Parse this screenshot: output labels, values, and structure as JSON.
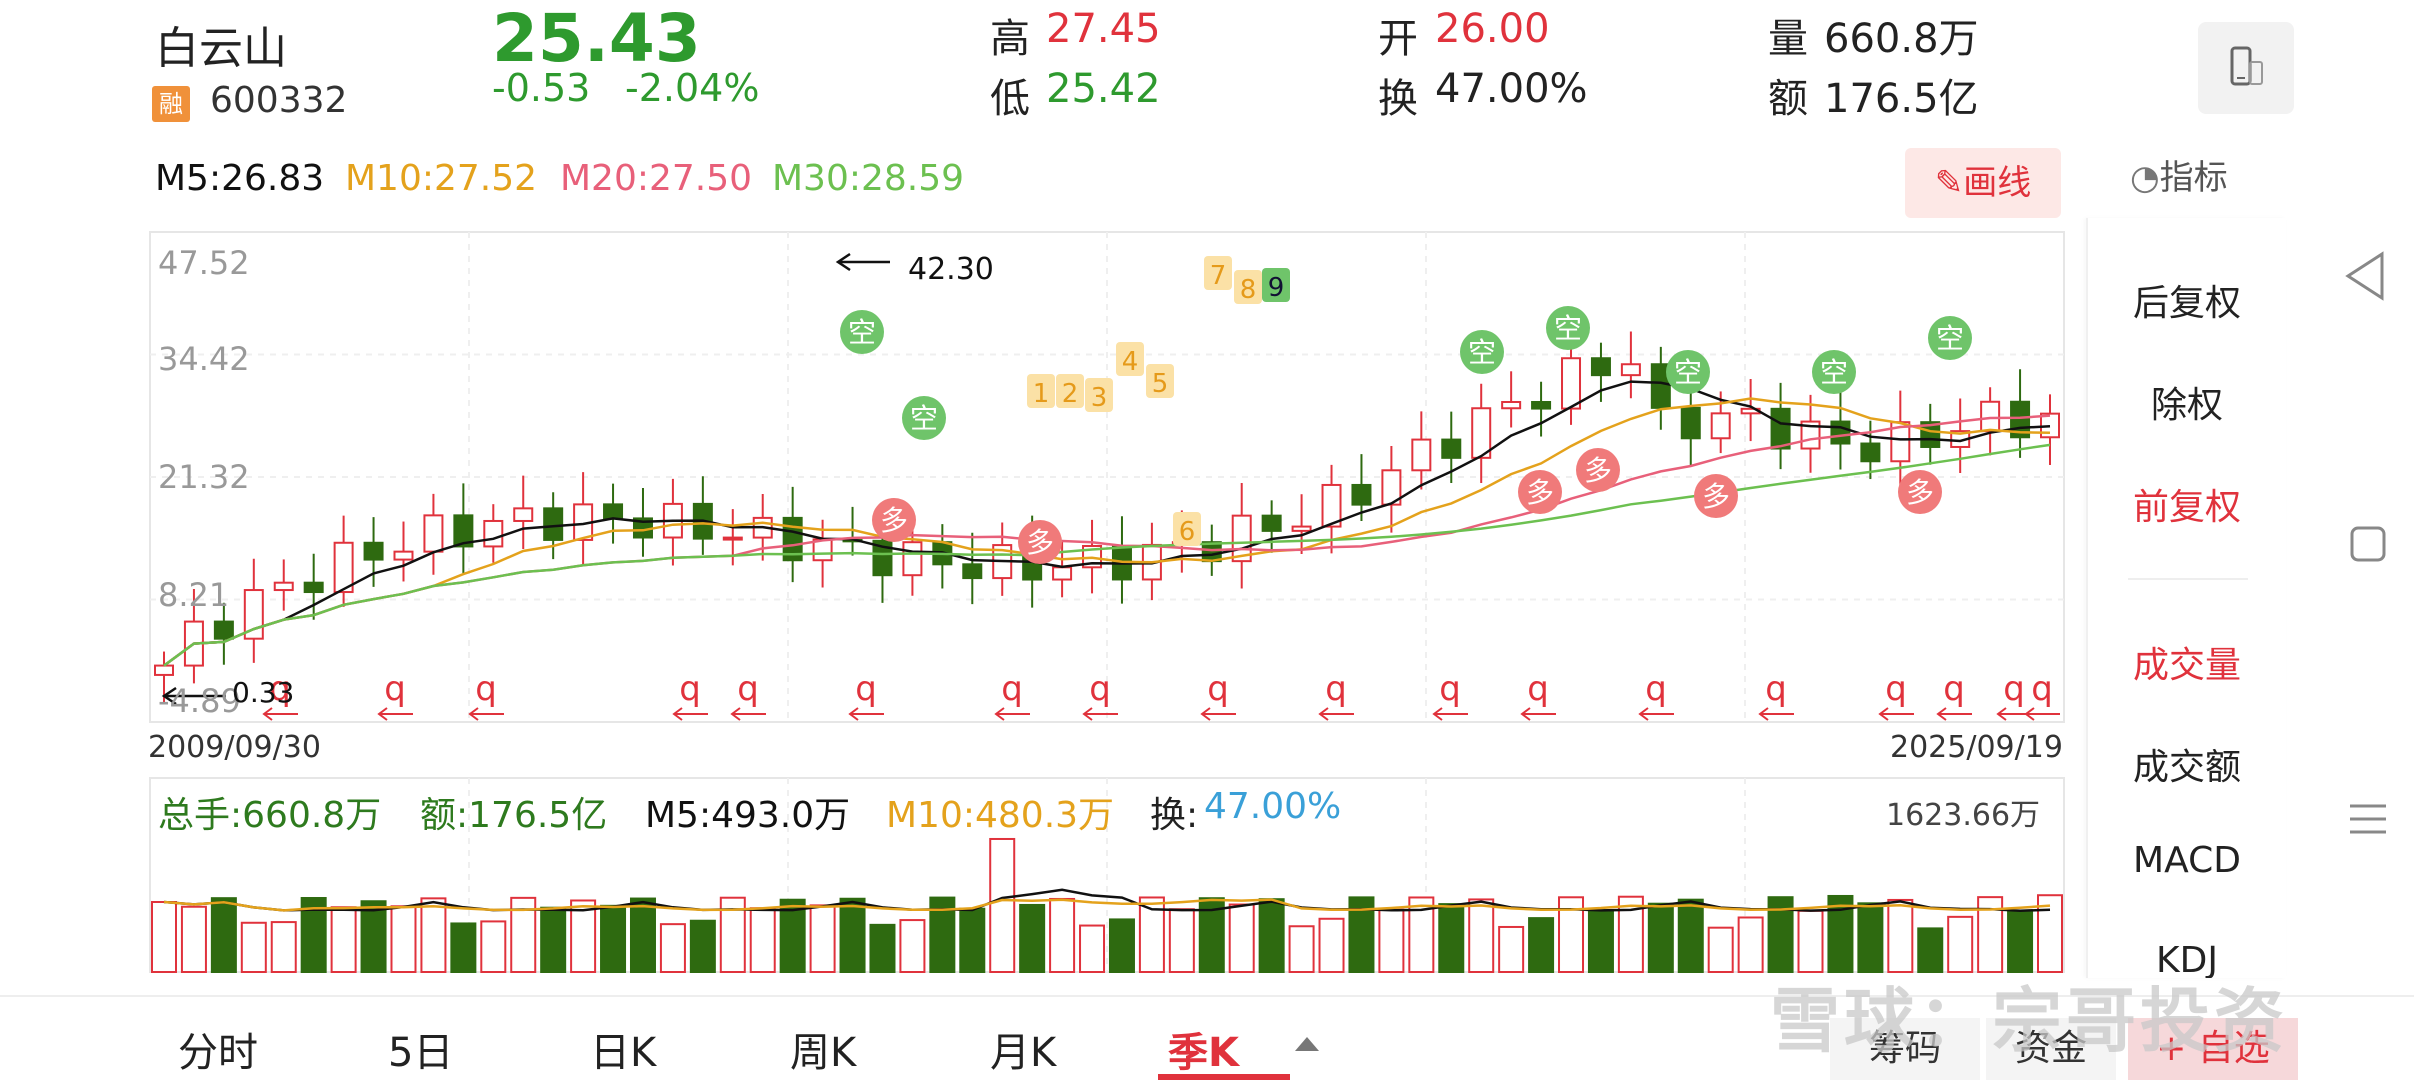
{
  "header": {
    "name": "白云山",
    "margin_badge": "融",
    "code": "600332",
    "price": "25.43",
    "change": "-0.53",
    "change_pct": "-2.04%",
    "high_label": "高",
    "high": "27.45",
    "low_label": "低",
    "low": "25.42",
    "open_label": "开",
    "open": "26.00",
    "turnover_label": "换",
    "turnover": "47.00%",
    "volume_label": "量",
    "volume": "660.8万",
    "amount_label": "额",
    "amount": "176.5亿"
  },
  "ma_legend": {
    "m5": "M5:26.83",
    "m10": "M10:27.52",
    "m20": "M20:27.50",
    "m30": "M30:28.59"
  },
  "draw_button": "画线",
  "indicator_button": "指标",
  "right_panel": {
    "items": [
      "后复权",
      "除权",
      "前复权",
      "成交量",
      "成交额",
      "MACD",
      "KDJ"
    ],
    "active": [
      "前复权",
      "成交量"
    ]
  },
  "chart_data": [
    {
      "type": "candlestick",
      "title": "",
      "y_tick_labels": [
        "47.52",
        "34.42",
        "21.32",
        "8.21",
        "-4.89"
      ],
      "ylim": [
        -4.89,
        47.52
      ],
      "x_start": "2009/09/30",
      "x_end": "2025/09/19",
      "annotations": {
        "max": "42.30",
        "min": "0.33"
      },
      "labels": {
        "kong": "空",
        "duo": "多",
        "q": "q",
        "seq": [
          "1",
          "2",
          "3",
          "4",
          "5",
          "6",
          "7",
          "8",
          "9"
        ]
      },
      "colors": {
        "up": "#e0323c",
        "down": "#2e6a10",
        "m5": "#111111",
        "m10": "#e4a21c",
        "m20": "#e8607a",
        "m30": "#6cc050"
      }
    },
    {
      "type": "bar",
      "title": "",
      "legend": {
        "total": "总手:660.8万",
        "amount": "额:176.5亿",
        "m5": "M5:493.0万",
        "m10": "M10:480.3万",
        "turnover_label": "换:",
        "turnover": "47.00%"
      },
      "max_label": "1623.66万"
    }
  ],
  "tabs": [
    "分时",
    "5日",
    "日K",
    "周K",
    "月K",
    "季K"
  ],
  "active_tab": "季K",
  "bottom_buttons": {
    "chips": "筹码",
    "funds": "资金",
    "add": "+ 自选"
  },
  "watermark": "雪球：宗哥投资"
}
